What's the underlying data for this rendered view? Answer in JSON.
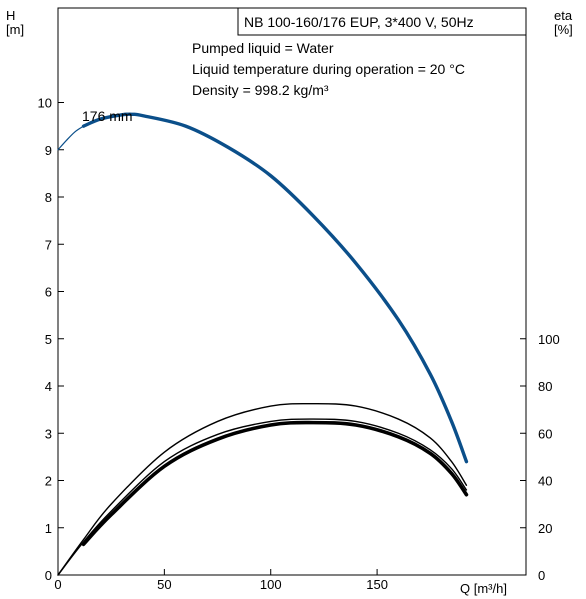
{
  "chart_data": {
    "type": "line",
    "title": "NB 100-160/176 EUP, 3*400 V, 50Hz",
    "info_lines": [
      "Pumped liquid = Water",
      "Liquid temperature during operation = 20 °C",
      "Density = 998.2 kg/m³"
    ],
    "curve_label": "176 mm",
    "x_axis": {
      "label": "Q [m³/h]",
      "range": [
        0,
        220
      ],
      "ticks": [
        0,
        50,
        100,
        150
      ]
    },
    "y_left": {
      "label_line1": "H",
      "label_line2": "[m]",
      "range": [
        0,
        12
      ],
      "ticks": [
        0,
        1,
        2,
        3,
        4,
        5,
        6,
        7,
        8,
        9,
        10
      ]
    },
    "y_right": {
      "label_line1": "eta",
      "label_line2": "[%]",
      "range": [
        0,
        100
      ],
      "ticks": [
        0,
        20,
        40,
        60,
        80,
        100
      ]
    },
    "grid": false,
    "colors": {
      "head": "#0b4f8a",
      "eta": "#000000"
    },
    "series": [
      {
        "axis": "left",
        "style": "thin",
        "x": [
          0,
          4,
          8,
          12
        ],
        "y": [
          9.0,
          9.2,
          9.38,
          9.5
        ]
      },
      {
        "axis": "left",
        "style": "head",
        "x": [
          12,
          20,
          30,
          35,
          40,
          60,
          80,
          100,
          120,
          140,
          160,
          175,
          185,
          192
        ],
        "y": [
          9.5,
          9.65,
          9.74,
          9.75,
          9.72,
          9.5,
          9.05,
          8.45,
          7.6,
          6.6,
          5.4,
          4.25,
          3.25,
          2.4
        ]
      },
      {
        "axis": "right",
        "style": "thin",
        "x": [
          0,
          12,
          25,
          50,
          75,
          100,
          120,
          140,
          160,
          175,
          185,
          192
        ],
        "y": [
          0,
          15,
          30,
          52,
          65,
          71.5,
          72.5,
          71.5,
          66,
          58,
          48,
          38
        ]
      },
      {
        "axis": "right",
        "style": "thin",
        "x": [
          0,
          12,
          25,
          50,
          75,
          100,
          120,
          140,
          160,
          175,
          185,
          192
        ],
        "y": [
          0,
          14,
          27,
          48,
          59.5,
          65,
          66,
          65,
          60,
          53,
          45,
          36
        ]
      },
      {
        "axis": "right",
        "style": "thick",
        "x": [
          12,
          25,
          50,
          75,
          100,
          120,
          140,
          160,
          175,
          185,
          192
        ],
        "y": [
          13,
          25.5,
          46,
          57.5,
          63.5,
          64.5,
          63.5,
          58.5,
          51.5,
          43,
          34
        ]
      }
    ]
  }
}
